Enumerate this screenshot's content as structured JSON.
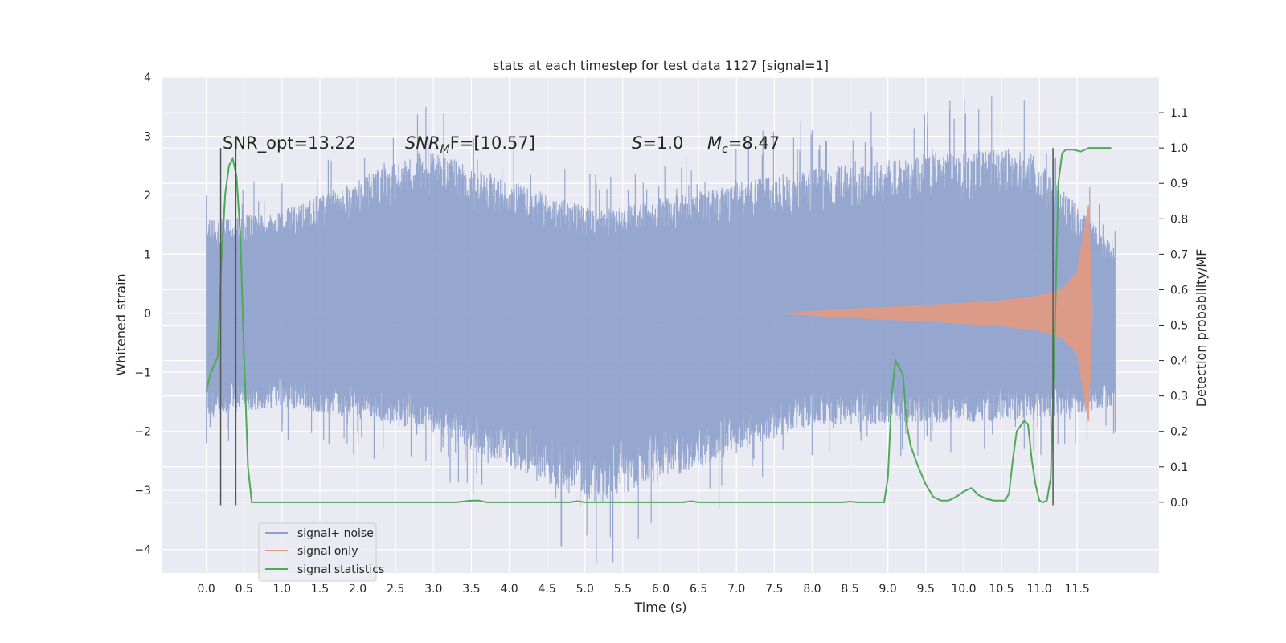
{
  "chart_data": {
    "type": "line",
    "title": "stats at each timestep for test data 1127 [signal=1]",
    "xlabel": "Time (s)",
    "ylabel_left": "Whitened strain",
    "ylabel_right": "Detection probability/MF",
    "xlim": [
      -0.58,
      12.58
    ],
    "ylim_left": [
      -4.4,
      4.0
    ],
    "ylim_right": [
      -0.2,
      1.2
    ],
    "x_ticks": [
      "0.0",
      "0.5",
      "1.0",
      "1.5",
      "2.0",
      "2.5",
      "3.0",
      "3.5",
      "4.0",
      "4.5",
      "5.0",
      "5.5",
      "6.0",
      "6.5",
      "7.0",
      "7.5",
      "8.0",
      "8.5",
      "9.0",
      "9.5",
      "10.0",
      "10.5",
      "11.0",
      "11.5"
    ],
    "y_ticks_left": [
      "4",
      "3",
      "2",
      "1",
      "0",
      "−1",
      "−2",
      "−3",
      "−4"
    ],
    "y_ticks_right": [
      "1.1",
      "1.0",
      "0.9",
      "0.8",
      "0.7",
      "0.6",
      "0.5",
      "0.4",
      "0.3",
      "0.2",
      "0.1",
      "0.0"
    ],
    "grid": true,
    "legend_position": "lower-left",
    "annotations": {
      "snr_opt": "SNR_opt=13.22",
      "snr_mf_base": "SNR",
      "snr_mf_sub": "M",
      "snr_mf_rest": "F=[10.57]",
      "s_sym": "S",
      "s_rest": "=1.0",
      "mc_sym": "M",
      "mc_sub": "c",
      "mc_rest": "=8.47"
    },
    "vertical_markers_s": [
      0.19,
      0.39,
      11.18
    ],
    "series": [
      {
        "name": "signal+ noise",
        "color": "#8da0cb",
        "envelope_description": "noise band approx ±1.3 to ±2.5, peaks near 3.5 at 2.9 s and 3.6 at 10.8 s, dip to -4.1 at 5.15 s",
        "envelope": [
          {
            "x": 0.0,
            "upper": 2.0,
            "lower": -2.2
          },
          {
            "x": 1.0,
            "upper": 2.2,
            "lower": -2.0
          },
          {
            "x": 2.9,
            "upper": 3.5,
            "lower": -2.5
          },
          {
            "x": 5.15,
            "upper": 2.2,
            "lower": -4.1
          },
          {
            "x": 8.0,
            "upper": 3.1,
            "lower": -2.4
          },
          {
            "x": 10.8,
            "upper": 3.6,
            "lower": -2.3
          },
          {
            "x": 12.0,
            "upper": 1.4,
            "lower": -2.0
          }
        ]
      },
      {
        "name": "signal only",
        "color": "#e29a80",
        "envelope": [
          {
            "x": 0.0,
            "amp": 0.0
          },
          {
            "x": 7.5,
            "amp": 0.0
          },
          {
            "x": 8.5,
            "amp": 0.08
          },
          {
            "x": 9.5,
            "amp": 0.14
          },
          {
            "x": 10.5,
            "amp": 0.22
          },
          {
            "x": 11.0,
            "amp": 0.3
          },
          {
            "x": 11.3,
            "amp": 0.42
          },
          {
            "x": 11.5,
            "amp": 0.7
          },
          {
            "x": 11.65,
            "amp": 1.85
          },
          {
            "x": 11.7,
            "amp": 0.0
          },
          {
            "x": 12.0,
            "amp": 0.0
          }
        ]
      },
      {
        "name": "signal statistics",
        "color": "#4daa57",
        "axis": "right",
        "x": [
          0.0,
          0.05,
          0.15,
          0.2,
          0.25,
          0.3,
          0.35,
          0.4,
          0.45,
          0.5,
          0.55,
          0.6,
          0.7,
          3.3,
          3.5,
          3.6,
          3.7,
          4.8,
          4.9,
          5.0,
          6.3,
          6.4,
          6.5,
          8.4,
          8.5,
          8.6,
          8.95,
          9.0,
          9.05,
          9.1,
          9.15,
          9.2,
          9.25,
          9.3,
          9.4,
          9.5,
          9.6,
          9.7,
          9.8,
          9.9,
          10.0,
          10.1,
          10.2,
          10.3,
          10.4,
          10.5,
          10.55,
          10.6,
          10.65,
          10.7,
          10.8,
          10.85,
          10.9,
          10.95,
          11.0,
          11.05,
          11.1,
          11.15,
          11.2,
          11.25,
          11.3,
          11.35,
          11.45,
          11.55,
          11.65,
          11.8,
          11.95
        ],
        "y": [
          0.31,
          0.36,
          0.41,
          0.68,
          0.87,
          0.95,
          0.97,
          0.92,
          0.75,
          0.4,
          0.1,
          0.0,
          0.0,
          0.0,
          0.005,
          0.005,
          0.0,
          0.0,
          0.003,
          0.0,
          0.0,
          0.003,
          0.0,
          0.0,
          0.002,
          0.0,
          0.0,
          0.07,
          0.3,
          0.4,
          0.38,
          0.36,
          0.22,
          0.16,
          0.1,
          0.05,
          0.015,
          0.005,
          0.005,
          0.015,
          0.03,
          0.04,
          0.02,
          0.01,
          0.005,
          0.005,
          0.005,
          0.025,
          0.12,
          0.2,
          0.23,
          0.22,
          0.12,
          0.05,
          0.005,
          0.0,
          0.005,
          0.07,
          0.45,
          0.9,
          0.985,
          0.995,
          0.995,
          0.99,
          1.0,
          1.0,
          1.0
        ]
      }
    ]
  }
}
